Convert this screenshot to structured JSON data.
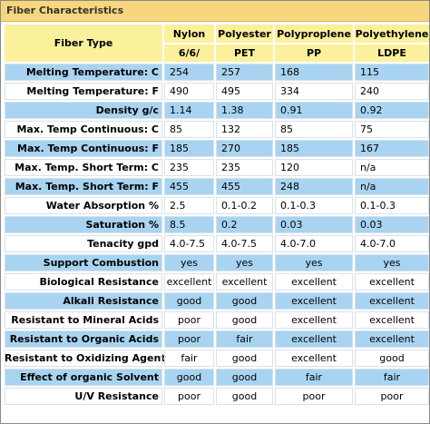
{
  "title": "Fiber Characteristics",
  "header": {
    "type_label": "Fiber Type",
    "columns": [
      {
        "name": "Nylon",
        "sub": "6/6/"
      },
      {
        "name": "Polyester",
        "sub": "PET"
      },
      {
        "name": "Polyproplene",
        "sub": "PP"
      },
      {
        "name": "Polyethylene",
        "sub": "LDPE"
      }
    ]
  },
  "rows": [
    {
      "label": "Melting Temperature: C",
      "values": [
        "254",
        "257",
        "168",
        "115"
      ],
      "style": "blue"
    },
    {
      "label": "Melting Temperature: F",
      "values": [
        "490",
        "495",
        "334",
        "240"
      ],
      "style": "white"
    },
    {
      "label": "Density g/c",
      "values": [
        "1.14",
        "1.38",
        "0.91",
        "0.92"
      ],
      "style": "blue"
    },
    {
      "label": "Max. Temp Continuous: C",
      "values": [
        "85",
        "132",
        "85",
        "75"
      ],
      "style": "white"
    },
    {
      "label": "Max. Temp Continuous: F",
      "values": [
        "185",
        "270",
        "185",
        "167"
      ],
      "style": "blue"
    },
    {
      "label": "Max. Temp. Short Term: C",
      "values": [
        "235",
        "235",
        "120",
        "n/a"
      ],
      "style": "white"
    },
    {
      "label": "Max. Temp. Short Term: F",
      "values": [
        "455",
        "455",
        "248",
        "n/a"
      ],
      "style": "blue"
    },
    {
      "label": "Water Absorption %",
      "values": [
        "2.5",
        "0.1-0.2",
        "0.1-0.3",
        "0.1-0.3"
      ],
      "style": "white"
    },
    {
      "label": "Saturation %",
      "values": [
        "8.5",
        "0.2",
        "0.03",
        "0.03"
      ],
      "style": "blue"
    },
    {
      "label": "Tenacity gpd",
      "values": [
        "4.0-7.5",
        "4.0-7.5",
        "4.0-7.0",
        "4.0-7.0"
      ],
      "style": "white"
    },
    {
      "label": "Support Combustion",
      "values": [
        "yes",
        "yes",
        "yes",
        "yes"
      ],
      "style": "blue"
    },
    {
      "label": "Biological Resistance",
      "values": [
        "excellent",
        "excellent",
        "excellent",
        "excellent"
      ],
      "style": "white"
    },
    {
      "label": "Alkali Resistance",
      "values": [
        "good",
        "good",
        "excellent",
        "excellent"
      ],
      "style": "blue"
    },
    {
      "label": "Resistant to Mineral Acids",
      "values": [
        "poor",
        "good",
        "excellent",
        "excellent"
      ],
      "style": "white"
    },
    {
      "label": "Resistant to Organic Acids",
      "values": [
        "poor",
        "fair",
        "excellent",
        "excellent"
      ],
      "style": "blue"
    },
    {
      "label": "Resistant to Oxidizing Agent",
      "values": [
        "fair",
        "good",
        "excellent",
        "good"
      ],
      "style": "white"
    },
    {
      "label": "Effect of organic Solvent",
      "values": [
        "good",
        "good",
        "fair",
        "fair"
      ],
      "style": "blue"
    },
    {
      "label": "U/V Resistance",
      "values": [
        "poor",
        "good",
        "poor",
        "poor"
      ],
      "style": "white"
    }
  ]
}
